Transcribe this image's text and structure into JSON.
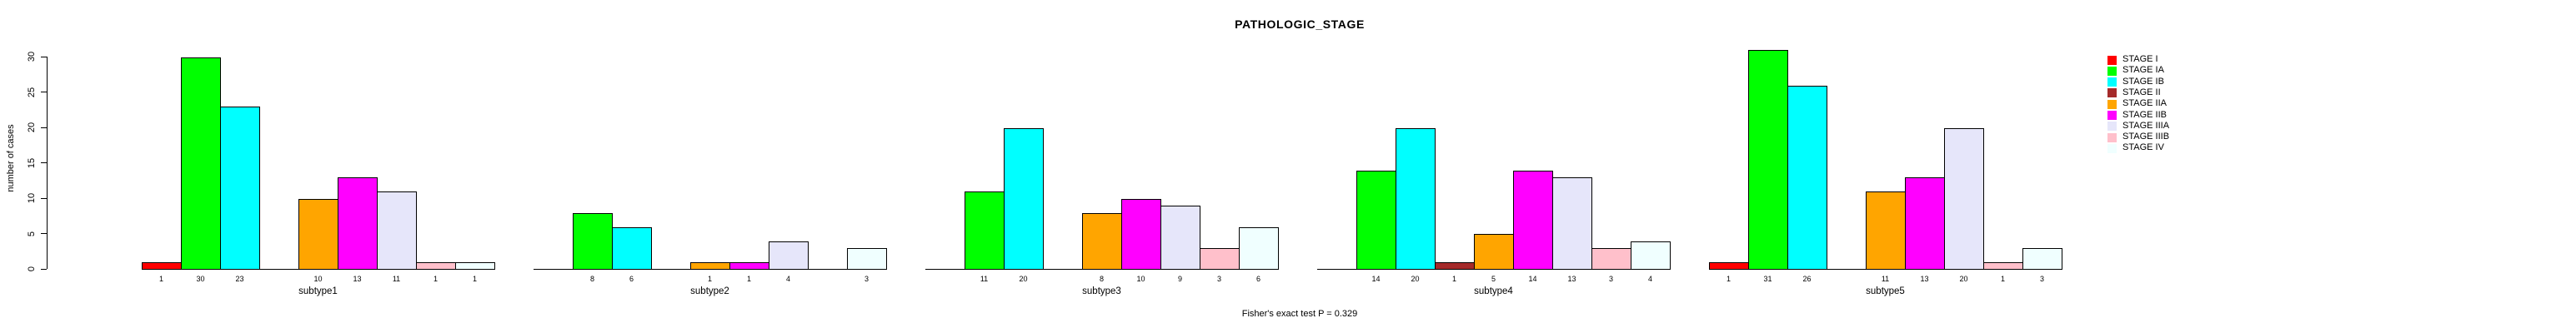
{
  "title": "PATHOLOGIC_STAGE",
  "ylabel": "number of cases",
  "annotation": "Fisher's exact test P = 0.329",
  "legend": {
    "entries": [
      {
        "label": "STAGE I",
        "color": "#FF0000"
      },
      {
        "label": "STAGE IA",
        "color": "#00FF00"
      },
      {
        "label": "STAGE IB",
        "color": "#00FFFF"
      },
      {
        "label": "STAGE II",
        "color": "#A52A2A"
      },
      {
        "label": "STAGE IIA",
        "color": "#FFA500"
      },
      {
        "label": "STAGE IIB",
        "color": "#FF00FF"
      },
      {
        "label": "STAGE IIIA",
        "color": "#E6E6FA"
      },
      {
        "label": "STAGE IIIB",
        "color": "#FFC0CB"
      },
      {
        "label": "STAGE IV",
        "color": "#F0FFFF"
      }
    ]
  },
  "chart_data": {
    "type": "bar",
    "title": "PATHOLOGIC_STAGE",
    "xlabel": "",
    "ylabel": "number of cases",
    "ylim": [
      0,
      30
    ],
    "yticks": [
      0,
      5,
      10,
      15,
      20,
      25,
      30
    ],
    "grid": false,
    "legend_position": "top-right",
    "bar_value_labels": true,
    "annotation": "Fisher's exact test P = 0.329",
    "categories": [
      "subtype1",
      "subtype2",
      "subtype3",
      "subtype4",
      "subtype5"
    ],
    "series": [
      {
        "name": "STAGE I",
        "color": "#FF0000",
        "values": [
          1,
          0,
          0,
          0,
          1
        ]
      },
      {
        "name": "STAGE IA",
        "color": "#00FF00",
        "values": [
          30,
          8,
          11,
          14,
          31
        ]
      },
      {
        "name": "STAGE IB",
        "color": "#00FFFF",
        "values": [
          23,
          6,
          20,
          20,
          26
        ]
      },
      {
        "name": "STAGE II",
        "color": "#A52A2A",
        "values": [
          0,
          0,
          0,
          1,
          0
        ]
      },
      {
        "name": "STAGE IIA",
        "color": "#FFA500",
        "values": [
          10,
          1,
          8,
          5,
          11
        ]
      },
      {
        "name": "STAGE IIB",
        "color": "#FF00FF",
        "values": [
          13,
          1,
          10,
          14,
          13
        ]
      },
      {
        "name": "STAGE IIIA",
        "color": "#E6E6FA",
        "values": [
          11,
          4,
          9,
          13,
          20
        ]
      },
      {
        "name": "STAGE IIIB",
        "color": "#FFC0CB",
        "values": [
          1,
          0,
          3,
          3,
          1
        ]
      },
      {
        "name": "STAGE IV",
        "color": "#F0FFFF",
        "values": [
          1,
          3,
          6,
          4,
          3
        ]
      }
    ]
  }
}
